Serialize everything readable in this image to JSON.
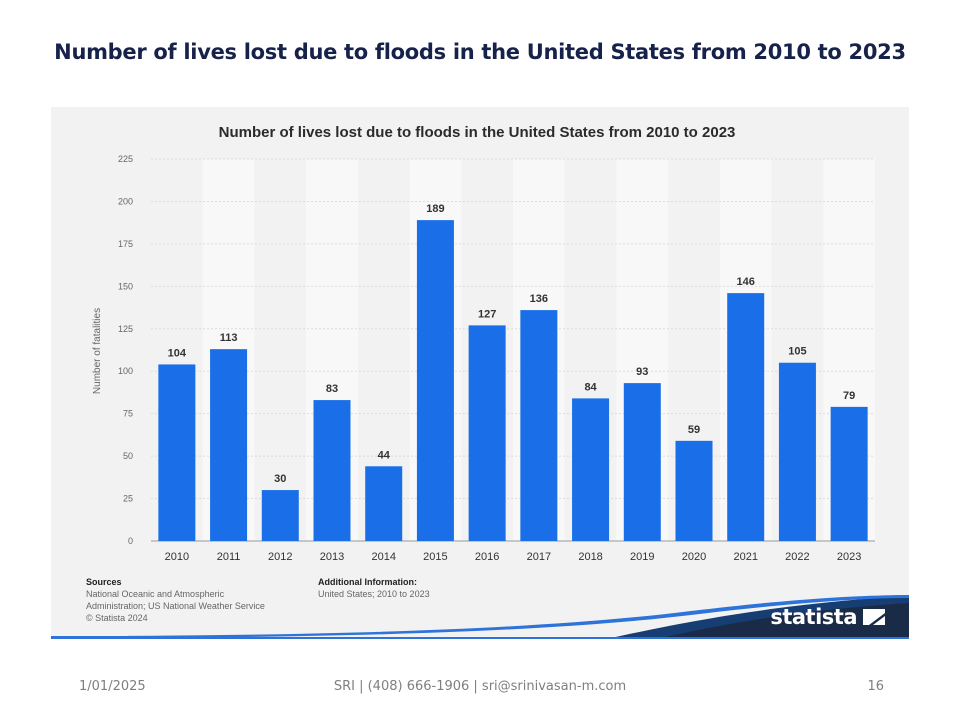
{
  "slide": {
    "title": "Number of lives lost due to floods in the United States from 2010 to 2023"
  },
  "chart_data": {
    "type": "bar",
    "title": "Number of lives lost due to floods in the United States from 2010 to 2023",
    "categories": [
      "2010",
      "2011",
      "2012",
      "2013",
      "2014",
      "2015",
      "2016",
      "2017",
      "2018",
      "2019",
      "2020",
      "2021",
      "2022",
      "2023"
    ],
    "values": [
      104,
      113,
      30,
      83,
      44,
      189,
      127,
      136,
      84,
      93,
      59,
      146,
      105,
      79
    ],
    "ylabel": "Number of fatalities",
    "xlabel": "",
    "ylim": [
      0,
      225
    ],
    "yticks": [
      0,
      25,
      50,
      75,
      100,
      125,
      150,
      175,
      200,
      225
    ],
    "grid": true,
    "bar_color": "#1a6fe8"
  },
  "sources": {
    "heading": "Sources",
    "lines": [
      "National Oceanic and Atmospheric",
      "Administration; US National Weather Service",
      "© Statista 2024"
    ]
  },
  "additional_info": {
    "heading": "Additional Information:",
    "text": "United States; 2010 to 2023"
  },
  "logo": {
    "text": "statista"
  },
  "footer": {
    "date": "1/01/2025",
    "contact": "SRI | (408) 666-1906 | sri@srinivasan-m.com",
    "page": "16"
  }
}
